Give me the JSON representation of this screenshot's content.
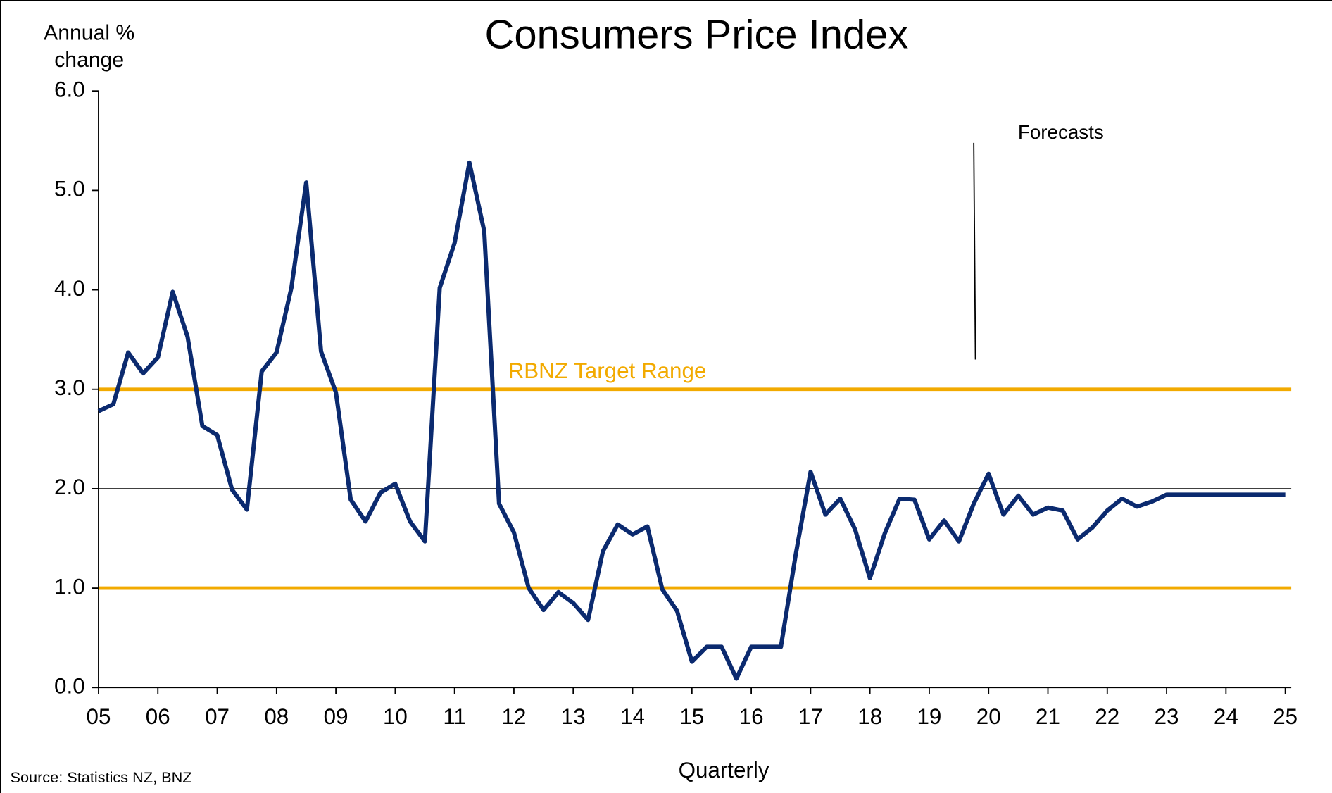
{
  "chart_data": {
    "type": "line",
    "title": "Consumers Price Index",
    "y_label_lines": [
      "Annual %",
      "change"
    ],
    "x_label": "Quarterly",
    "source": "Source:  Statistics NZ, BNZ",
    "x": [
      5,
      5.25,
      5.5,
      5.75,
      6,
      6.25,
      6.5,
      6.75,
      7,
      7.25,
      7.5,
      7.75,
      8,
      8.25,
      8.5,
      8.75,
      9,
      9.25,
      9.5,
      9.75,
      10,
      10.25,
      10.5,
      10.75,
      11,
      11.25,
      11.5,
      11.75,
      12,
      12.25,
      12.5,
      12.75,
      13,
      13.25,
      13.5,
      13.75,
      14,
      14.25,
      14.5,
      14.75,
      15,
      15.25,
      15.5,
      15.75,
      16,
      16.25,
      16.5,
      16.75,
      17,
      17.25,
      17.5,
      17.75,
      18,
      18.25,
      18.5,
      18.75,
      19,
      19.25,
      19.5,
      19.75,
      20,
      20.25,
      20.5,
      20.75,
      21,
      21.25,
      21.5,
      21.75,
      22,
      22.25,
      22.5,
      22.75,
      23,
      23.25,
      23.5,
      23.75,
      24,
      24.25,
      24.5,
      24.75,
      25
    ],
    "series": [
      {
        "name": "CPI",
        "color": "#0b2a6f",
        "values": [
          2.78,
          2.85,
          3.37,
          3.16,
          3.32,
          3.98,
          3.53,
          2.63,
          2.54,
          1.99,
          1.79,
          3.18,
          3.37,
          4.02,
          5.08,
          3.38,
          2.97,
          1.89,
          1.67,
          1.96,
          2.05,
          1.67,
          1.47,
          4.02,
          4.47,
          5.28,
          4.59,
          1.85,
          1.56,
          1.0,
          0.78,
          0.96,
          0.85,
          0.68,
          1.37,
          1.64,
          1.54,
          1.62,
          0.99,
          0.77,
          0.26,
          0.41,
          0.41,
          0.09,
          0.41,
          0.41,
          0.41,
          1.34,
          2.17,
          1.74,
          1.9,
          1.59,
          1.1,
          1.55,
          1.9,
          1.89,
          1.49,
          1.68,
          1.47,
          1.85,
          2.15,
          1.74,
          1.93,
          1.74,
          1.81,
          1.78,
          1.49,
          1.61,
          1.78,
          1.9,
          1.82,
          1.87,
          1.94,
          1.94,
          1.94,
          1.94,
          1.94,
          1.94,
          1.94,
          1.94,
          1.94
        ]
      }
    ],
    "target_range": {
      "label": "RBNZ Target Range",
      "color": "#f2aa00",
      "values": [
        3,
        1
      ]
    },
    "reference_line": 2,
    "forecast": {
      "label": "Forecasts",
      "start": 19.75
    },
    "xlim": [
      5,
      25
    ],
    "xticks": [
      {
        "value": 5,
        "label": "05"
      },
      {
        "value": 6,
        "label": "06"
      },
      {
        "value": 7,
        "label": "07"
      },
      {
        "value": 8,
        "label": "08"
      },
      {
        "value": 9,
        "label": "09"
      },
      10,
      11,
      12,
      13,
      14,
      15,
      16,
      17,
      18,
      19,
      20,
      21,
      22,
      23,
      24,
      25
    ],
    "ylim": [
      0,
      6
    ],
    "yticks": [
      {
        "value": 0,
        "label": "0.0"
      },
      {
        "value": 1,
        "label": "1.0"
      },
      {
        "value": 2,
        "label": "2.0"
      },
      {
        "value": 3,
        "label": "3.0"
      },
      {
        "value": 4,
        "label": "4.0"
      },
      {
        "value": 5,
        "label": "5.0"
      },
      {
        "value": 6,
        "label": "6.0"
      }
    ],
    "grid": false
  }
}
